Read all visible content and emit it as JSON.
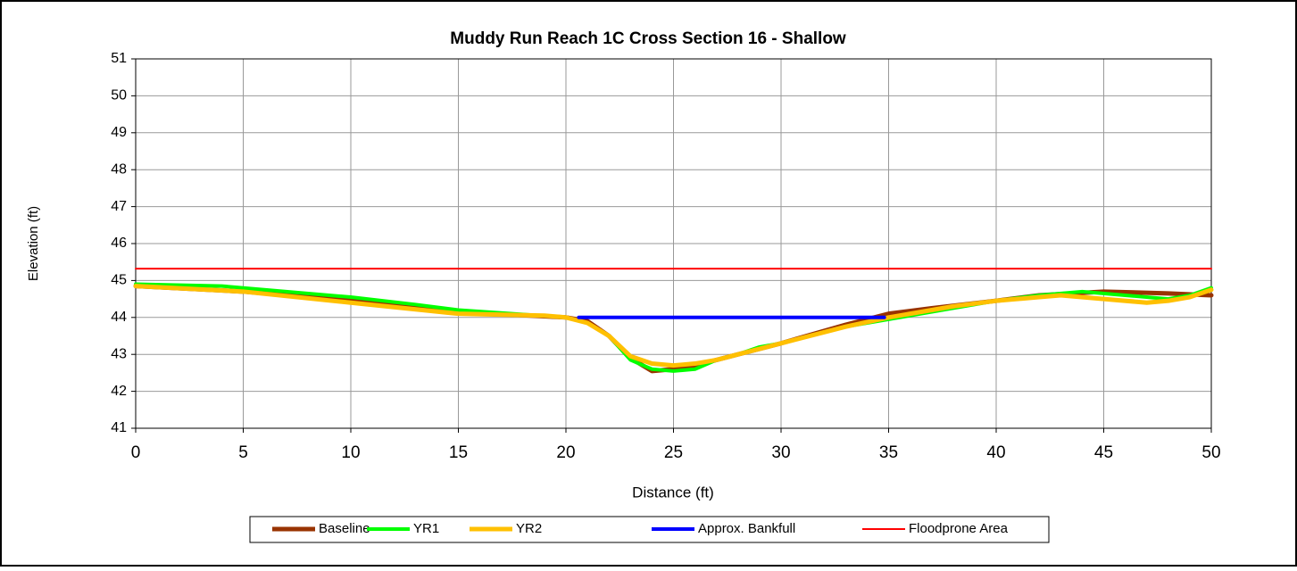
{
  "chart_data": {
    "type": "line",
    "title": "Muddy Run Reach 1C Cross Section 16 - Shallow",
    "xlabel": "Distance (ft)",
    "ylabel": "Elevation (ft)",
    "xlim": [
      0,
      50
    ],
    "xticks": [
      0,
      5,
      10,
      15,
      20,
      25,
      30,
      35,
      40,
      45,
      50
    ],
    "ylim": [
      41,
      51
    ],
    "yticks": [
      41,
      42,
      43,
      44,
      45,
      46,
      47,
      48,
      49,
      50,
      51
    ],
    "grid": true,
    "legend": "bottom",
    "series": [
      {
        "name": "Baseline",
        "color": "#993300",
        "x": [
          0,
          5,
          10,
          15,
          20,
          21,
          22,
          23,
          24,
          25,
          26,
          27,
          28,
          30,
          33,
          35,
          37,
          40,
          42,
          45,
          48,
          50
        ],
        "values": [
          44.85,
          44.7,
          44.45,
          44.15,
          44.0,
          43.9,
          43.5,
          42.9,
          42.55,
          42.6,
          42.7,
          42.85,
          43.0,
          43.3,
          43.8,
          44.1,
          44.25,
          44.45,
          44.6,
          44.7,
          44.65,
          44.6
        ]
      },
      {
        "name": "YR1",
        "color": "#00ff00",
        "x": [
          0,
          4,
          10,
          13,
          15,
          20,
          21,
          22,
          23,
          24,
          25,
          26,
          27,
          28,
          29,
          30,
          33,
          35,
          38,
          40,
          42,
          44,
          46,
          48,
          49,
          50
        ],
        "values": [
          44.9,
          44.85,
          44.55,
          44.35,
          44.2,
          44.0,
          43.85,
          43.5,
          42.85,
          42.6,
          42.55,
          42.6,
          42.85,
          43.0,
          43.2,
          43.3,
          43.75,
          43.95,
          44.25,
          44.45,
          44.6,
          44.7,
          44.6,
          44.5,
          44.6,
          44.8
        ]
      },
      {
        "name": "YR2",
        "color": "#ffc000",
        "x": [
          0,
          5,
          10,
          15,
          19,
          20,
          21,
          22,
          23,
          24,
          25,
          26,
          27,
          28,
          30,
          33,
          35,
          38,
          40,
          42,
          43,
          45,
          47,
          48,
          49,
          50
        ],
        "values": [
          44.85,
          44.7,
          44.4,
          44.1,
          44.05,
          44.0,
          43.85,
          43.5,
          42.95,
          42.75,
          42.7,
          42.75,
          42.85,
          43.0,
          43.3,
          43.75,
          44.0,
          44.3,
          44.45,
          44.55,
          44.6,
          44.5,
          44.4,
          44.45,
          44.55,
          44.75
        ]
      },
      {
        "name": "Approx. Bankfull",
        "color": "#0000ff",
        "x": [
          20.6,
          34.8
        ],
        "values": [
          44.0,
          44.0
        ]
      },
      {
        "name": "Floodprone Area",
        "color": "#ff0000",
        "x": [
          0,
          50
        ],
        "values": [
          45.32,
          45.32
        ]
      }
    ]
  }
}
